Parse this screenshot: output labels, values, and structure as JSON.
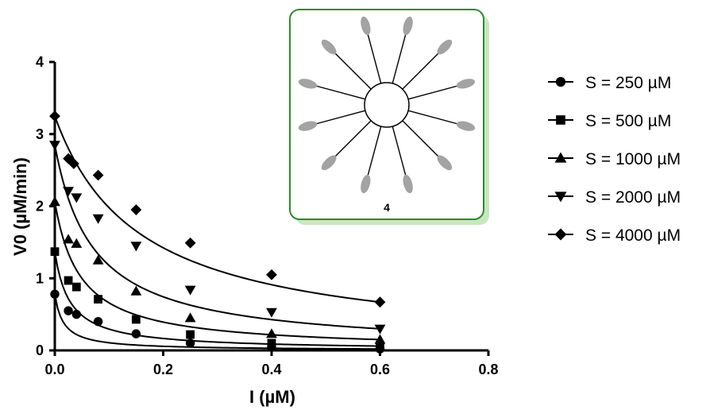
{
  "chart_data": {
    "type": "scatter",
    "xlabel": "I (µM)",
    "ylabel": "V0 (µM/min)",
    "xlim": [
      0,
      0.8
    ],
    "ylim": [
      0,
      4
    ],
    "xticks": [
      "0.0",
      "0.2",
      "0.4",
      "0.6",
      "0.8"
    ],
    "yticks": [
      "0",
      "1",
      "2",
      "3",
      "4"
    ],
    "grid": false,
    "legend_position": "right",
    "fit_curves": true,
    "series": [
      {
        "name": "S = 250 µM",
        "marker": "circle",
        "x": [
          0,
          0.025,
          0.04,
          0.08,
          0.15,
          0.25,
          0.4,
          0.6
        ],
        "y": [
          0.78,
          0.55,
          0.5,
          0.4,
          0.23,
          0.1,
          0.05,
          0.02
        ]
      },
      {
        "name": "S = 500 µM",
        "marker": "square",
        "x": [
          0,
          0.025,
          0.04,
          0.08,
          0.15,
          0.25,
          0.4,
          0.6
        ],
        "y": [
          1.37,
          0.97,
          0.88,
          0.71,
          0.43,
          0.22,
          0.1,
          0.06
        ]
      },
      {
        "name": "S = 1000 µM",
        "marker": "triangle-up",
        "x": [
          0,
          0.025,
          0.04,
          0.08,
          0.15,
          0.25,
          0.4,
          0.6
        ],
        "y": [
          2.06,
          1.54,
          1.48,
          1.25,
          0.82,
          0.45,
          0.23,
          0.15
        ]
      },
      {
        "name": "S = 2000 µM",
        "marker": "triangle-down",
        "x": [
          0,
          0.025,
          0.04,
          0.08,
          0.15,
          0.25,
          0.4,
          0.6
        ],
        "y": [
          2.85,
          2.21,
          2.12,
          1.83,
          1.45,
          0.84,
          0.53,
          0.3
        ]
      },
      {
        "name": "S = 4000 µM",
        "marker": "diamond",
        "x": [
          0,
          0.025,
          0.035,
          0.08,
          0.15,
          0.25,
          0.4,
          0.6
        ],
        "y": [
          3.25,
          2.66,
          2.59,
          2.43,
          1.95,
          1.49,
          1.05,
          0.67
        ]
      }
    ]
  },
  "inset": {
    "label": "4",
    "border_color": "#2e8b2e",
    "shadow_color": "#c9e6c1",
    "ellipse_color": "#a3a3a3"
  }
}
